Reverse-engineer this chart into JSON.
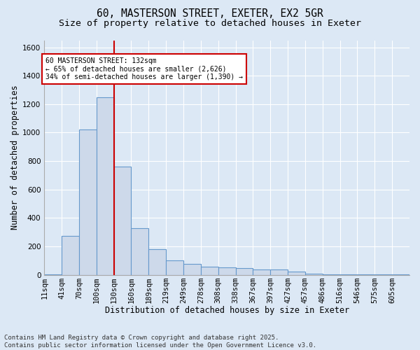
{
  "title_line1": "60, MASTERSON STREET, EXETER, EX2 5GR",
  "title_line2": "Size of property relative to detached houses in Exeter",
  "xlabel": "Distribution of detached houses by size in Exeter",
  "ylabel": "Number of detached properties",
  "bar_color": "#cdd9ea",
  "bar_edge_color": "#6699cc",
  "background_color": "#dce8f5",
  "grid_color": "#ffffff",
  "vline_color": "#cc0000",
  "vline_bin": 4,
  "annotation_text": "60 MASTERSON STREET: 132sqm\n← 65% of detached houses are smaller (2,626)\n34% of semi-detached houses are larger (1,390) →",
  "annotation_box_color": "#cc0000",
  "annotation_facecolor": "#ffffff",
  "categories": [
    "11sqm",
    "41sqm",
    "70sqm",
    "100sqm",
    "130sqm",
    "160sqm",
    "189sqm",
    "219sqm",
    "249sqm",
    "278sqm",
    "308sqm",
    "338sqm",
    "367sqm",
    "397sqm",
    "427sqm",
    "457sqm",
    "486sqm",
    "516sqm",
    "546sqm",
    "575sqm",
    "605sqm"
  ],
  "bar_heights": [
    5,
    275,
    1020,
    1250,
    760,
    330,
    180,
    100,
    75,
    55,
    50,
    45,
    35,
    35,
    20,
    8,
    4,
    4,
    2,
    2,
    2
  ],
  "ylim": [
    0,
    1650
  ],
  "yticks": [
    0,
    200,
    400,
    600,
    800,
    1000,
    1200,
    1400,
    1600
  ],
  "footer_text": "Contains HM Land Registry data © Crown copyright and database right 2025.\nContains public sector information licensed under the Open Government Licence v3.0.",
  "title_fontsize": 10.5,
  "subtitle_fontsize": 9.5,
  "axis_label_fontsize": 8.5,
  "tick_fontsize": 7.5,
  "annotation_fontsize": 7,
  "footer_fontsize": 6.5
}
